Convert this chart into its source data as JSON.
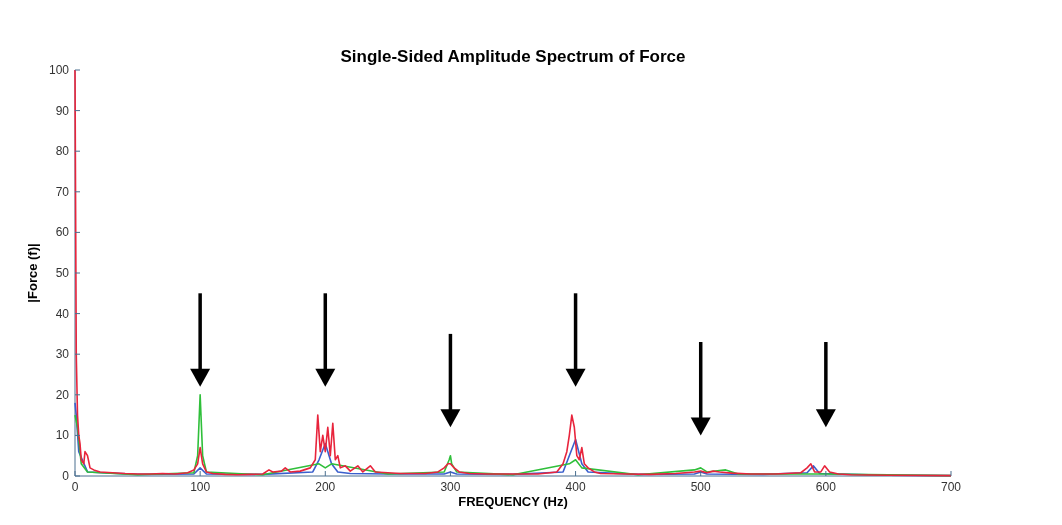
{
  "chart_data": {
    "type": "line",
    "title": "Single-Sided Amplitude Spectrum of Force",
    "xlabel": "FREQUENCY (Hz)",
    "ylabel": "|Force (f)|",
    "xlim": [
      0,
      700
    ],
    "xticks": [
      0,
      100,
      200,
      300,
      400,
      500,
      600,
      700
    ],
    "ylim": [
      0,
      100
    ],
    "yticks": [
      0,
      10,
      20,
      30,
      40,
      50,
      60,
      70,
      80,
      90,
      100
    ],
    "grid": false,
    "marker": "none",
    "line_style": "solid",
    "series": [
      {
        "color": "#3a5fcd",
        "x": [
          0,
          1,
          3,
          10,
          50,
          95,
          100,
          105,
          150,
          190,
          195,
          200,
          205,
          210,
          220,
          250,
          295,
          300,
          305,
          350,
          390,
          395,
          400,
          405,
          410,
          450,
          495,
          500,
          505,
          550,
          585,
          590,
          595,
          650,
          700
        ],
        "values": [
          18,
          15,
          6,
          1,
          0.4,
          0.5,
          2,
          0.5,
          0.4,
          1,
          4,
          8,
          3,
          1,
          0.6,
          0.5,
          0.5,
          1,
          0.5,
          0.4,
          1,
          5,
          9,
          3,
          1,
          0.4,
          0.5,
          1,
          0.5,
          0.4,
          0.8,
          2.5,
          0.6,
          0.2,
          0.1
        ]
      },
      {
        "color": "#2fbf3a",
        "x": [
          0,
          2,
          5,
          10,
          50,
          95,
          98,
          100,
          102,
          105,
          150,
          195,
          200,
          205,
          250,
          295,
          299,
          300,
          301,
          305,
          350,
          395,
          400,
          405,
          450,
          495,
          500,
          505,
          520,
          530,
          600,
          700
        ],
        "values": [
          15,
          12,
          3,
          1,
          0.3,
          0.8,
          5,
          20,
          5,
          1,
          0.3,
          3,
          2,
          3,
          0.5,
          1,
          4,
          5,
          3,
          1,
          0.3,
          3,
          4,
          2,
          0.3,
          1.5,
          2,
          1,
          1.5,
          0.5,
          0.5,
          0.1
        ]
      },
      {
        "color": "#e8243c",
        "x": [
          0,
          0.5,
          1,
          2,
          3,
          4,
          5,
          7,
          8,
          10,
          12,
          15,
          20,
          30,
          40,
          50,
          60,
          70,
          80,
          90,
          95,
          98,
          100,
          102,
          105,
          110,
          120,
          130,
          140,
          150,
          155,
          158,
          165,
          168,
          172,
          180,
          188,
          192,
          194,
          196,
          198,
          200,
          202,
          204,
          206,
          208,
          210,
          212,
          216,
          220,
          226,
          230,
          236,
          240,
          250,
          260,
          280,
          290,
          295,
          298,
          300,
          303,
          307,
          315,
          330,
          350,
          370,
          385,
          390,
          393,
          395,
          397,
          399,
          401,
          403,
          405,
          407,
          410,
          415,
          420,
          440,
          460,
          480,
          495,
          500,
          505,
          510,
          515,
          525,
          540,
          560,
          580,
          585,
          588,
          591,
          596,
          599,
          603,
          610,
          620,
          650,
          700
        ],
        "values": [
          100,
          65,
          30,
          15,
          10,
          8,
          4,
          3,
          6,
          5,
          2,
          1.5,
          1,
          0.8,
          0.6,
          0.5,
          0.5,
          0.6,
          0.5,
          0.8,
          1.5,
          3,
          7,
          3,
          1,
          0.6,
          0.4,
          0.3,
          0.4,
          0.5,
          1.5,
          1,
          1.2,
          2,
          1,
          1.2,
          2,
          4,
          15,
          6,
          10,
          6,
          12,
          5,
          13,
          4,
          5,
          2,
          2.5,
          1.2,
          2.5,
          1,
          2.5,
          1,
          0.8,
          0.6,
          0.6,
          1,
          2,
          3,
          3,
          2,
          1,
          0.6,
          0.5,
          0.5,
          0.5,
          1,
          3,
          6,
          10,
          15,
          12,
          5,
          4,
          7,
          3,
          2,
          1,
          0.6,
          0.5,
          0.4,
          0.6,
          1,
          1.2,
          0.8,
          1.2,
          1,
          0.7,
          0.5,
          0.5,
          0.8,
          2,
          3,
          1,
          1,
          2.5,
          1,
          0.5,
          0.3,
          0.2,
          0.1
        ]
      }
    ]
  }
}
